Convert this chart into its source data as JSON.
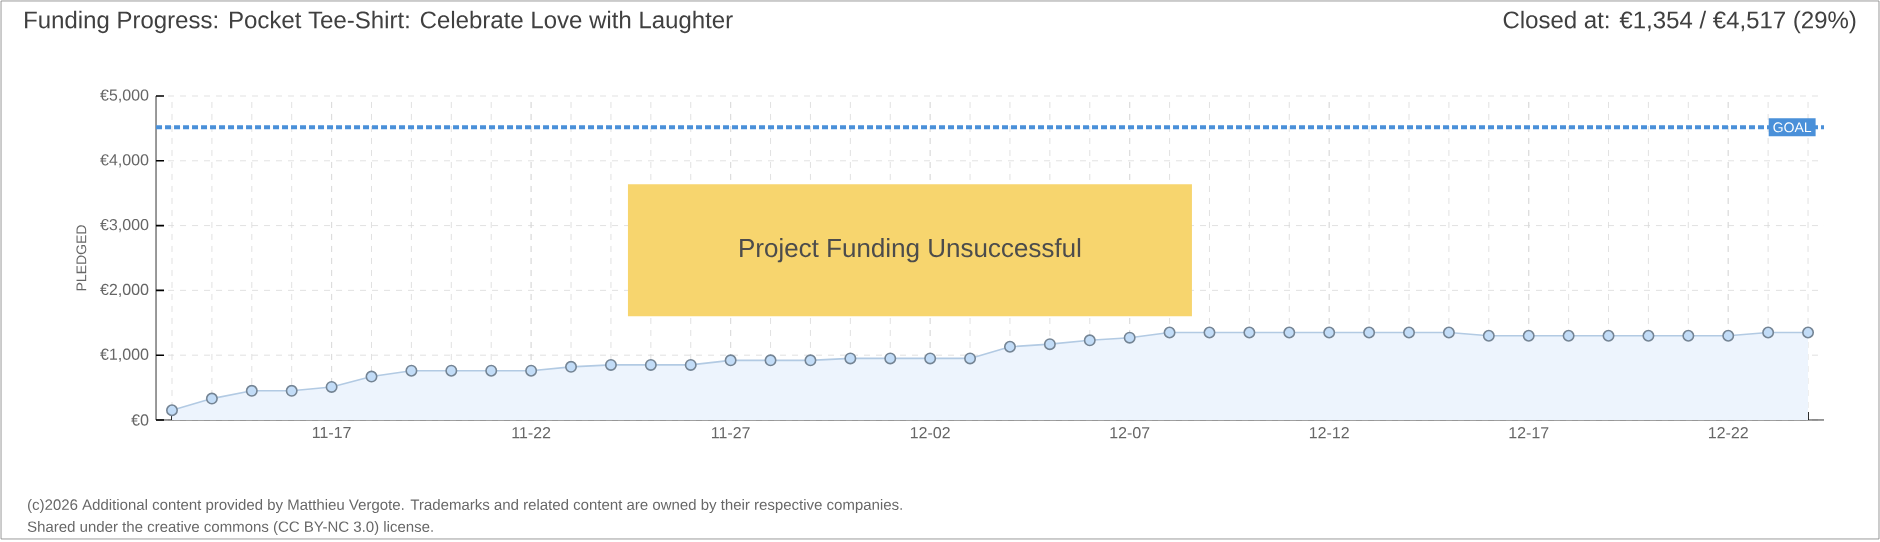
{
  "chart_data": {
    "type": "area",
    "title": "Funding Progress: Pocket Tee-Shirt: Celebrate Love with Laughter",
    "subtitle": "Closed at: €1,354 / €4,517 (29%)",
    "ylabel": "PLEDGED",
    "categories": [
      null,
      null,
      null,
      null,
      "11-17",
      null,
      null,
      null,
      null,
      "11-22",
      null,
      null,
      null,
      null,
      "11-27",
      null,
      null,
      null,
      null,
      "12-02",
      null,
      null,
      null,
      null,
      "12-07",
      null,
      null,
      null,
      null,
      "12-12",
      null,
      null,
      null,
      null,
      "12-17",
      null,
      null,
      null,
      null,
      "12-22",
      null,
      null
    ],
    "series": [
      {
        "color": "#c2dcf7",
        "values": [
          150,
          330,
          450,
          450,
          510,
          670,
          760,
          760,
          760,
          760,
          820,
          850,
          850,
          850,
          920,
          920,
          920,
          950,
          950,
          950,
          950,
          1130,
          1170,
          1230,
          1270,
          1350,
          1350,
          1350,
          1350,
          1350,
          1350,
          1350,
          1350,
          1300,
          1300,
          1300,
          1300,
          1300,
          1300,
          1300,
          1350,
          1350
        ]
      }
    ],
    "ylim": [
      0,
      5000
    ],
    "yticks": [
      {
        "value": 0,
        "label": "€0"
      },
      {
        "value": 1000,
        "label": "€1,000"
      },
      {
        "value": 2000,
        "label": "€2,000"
      },
      {
        "value": 3000,
        "label": "€3,000"
      },
      {
        "value": 4000,
        "label": "€4,000"
      },
      {
        "value": 5000,
        "label": "€5,000"
      }
    ],
    "ref_lines": [
      {
        "axis": "y",
        "value": 4517,
        "label": "GOAL",
        "color": "#4a90d9",
        "line_style": "dashed"
      }
    ],
    "annotations": [
      "Project Funding Unsuccessful",
      "(c)2026 Additional content provided by Matthieu Vergote. Trademarks and related content are owned by their respective companies.",
      "Shared under the creative commons (CC BY-NC 3.0) license."
    ],
    "grid": true,
    "marker": "circle"
  }
}
